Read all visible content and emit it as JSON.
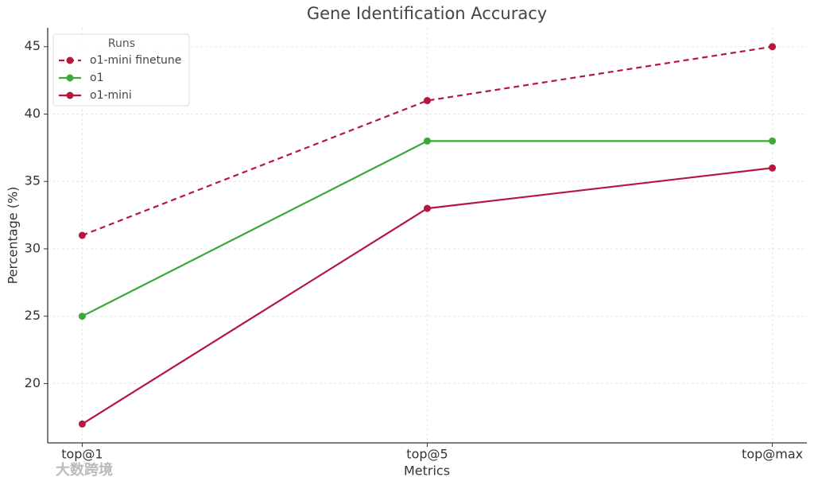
{
  "chart_data": {
    "type": "line",
    "title": "Gene Identification Accuracy",
    "x_label": "Metrics",
    "y_label": "Percentage (%)",
    "categories": [
      "top@1",
      "top@5",
      "top@max"
    ],
    "series": [
      {
        "name": "o1-mini finetune",
        "color": "#b5173f",
        "linestyle": "dashed",
        "values": [
          31,
          41,
          45
        ]
      },
      {
        "name": "o1",
        "color": "#3aaa35",
        "linestyle": "solid",
        "values": [
          25,
          38,
          38
        ]
      },
      {
        "name": "o1-mini",
        "color": "#b5173f",
        "linestyle": "solid",
        "values": [
          17,
          33,
          36
        ]
      }
    ],
    "ylim": [
      15.6,
      46.4
    ],
    "yticks": [
      20,
      25,
      30,
      35,
      40,
      45
    ],
    "grid": true,
    "legend_title": "Runs",
    "legend_position": "upper left",
    "watermark": "大数跨境"
  }
}
